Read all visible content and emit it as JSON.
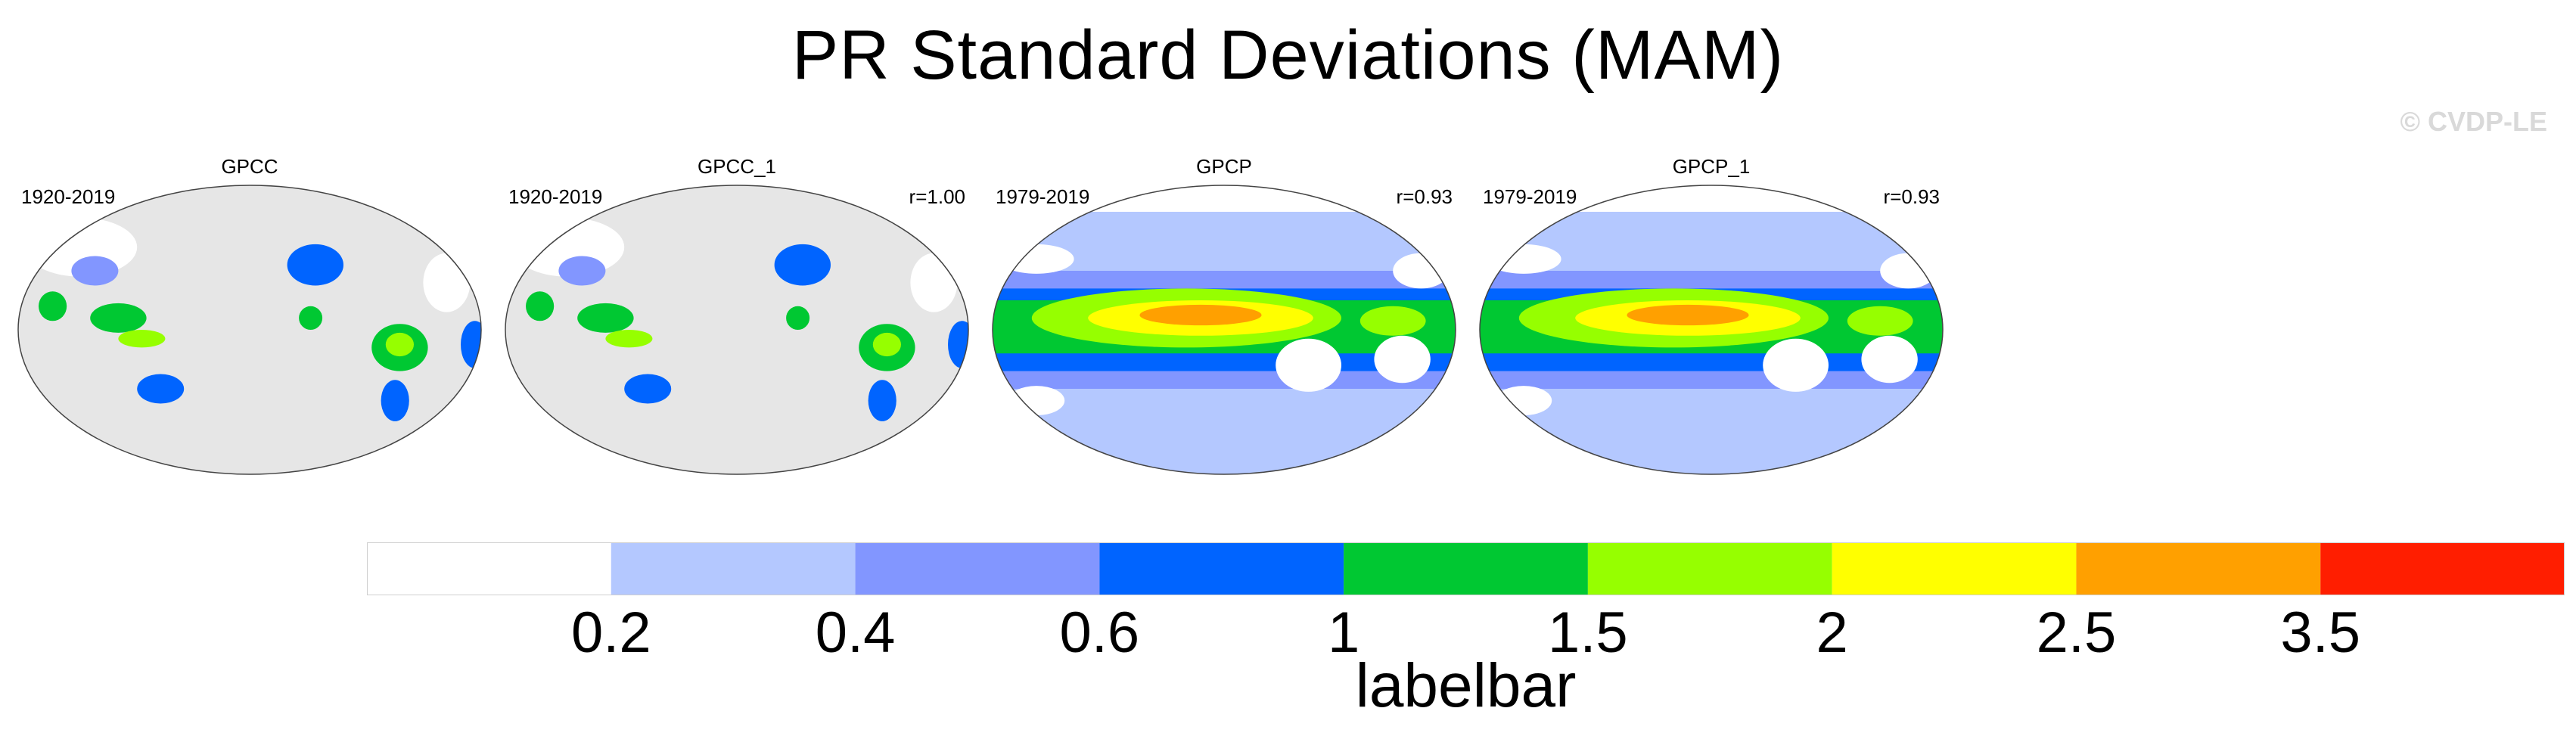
{
  "title": "PR Standard Deviations (MAM)",
  "copyright": "© CVDP-LE",
  "panels": [
    {
      "name": "GPCC",
      "years": "1920-2019",
      "r": "",
      "dataset": "land-only"
    },
    {
      "name": "GPCC_1",
      "years": "1920-2019",
      "r": "r=1.00",
      "dataset": "land-only"
    },
    {
      "name": "GPCP",
      "years": "1979-2019",
      "r": "r=0.93",
      "dataset": "global"
    },
    {
      "name": "GPCP_1",
      "years": "1979-2019",
      "r": "r=0.93",
      "dataset": "global"
    }
  ],
  "colorbar": {
    "label": "labelbar",
    "ticks": [
      "0.2",
      "0.4",
      "0.6",
      "1",
      "1.5",
      "2",
      "2.5",
      "3.5"
    ],
    "colors": [
      "#ffffff",
      "#b4c8ff",
      "#8296ff",
      "#0064ff",
      "#00c832",
      "#96ff00",
      "#ffff00",
      "#ffa000",
      "#ff1e00"
    ]
  },
  "colors": {
    "land_mask": "#e6e6e6",
    "coastline": "#555555"
  }
}
